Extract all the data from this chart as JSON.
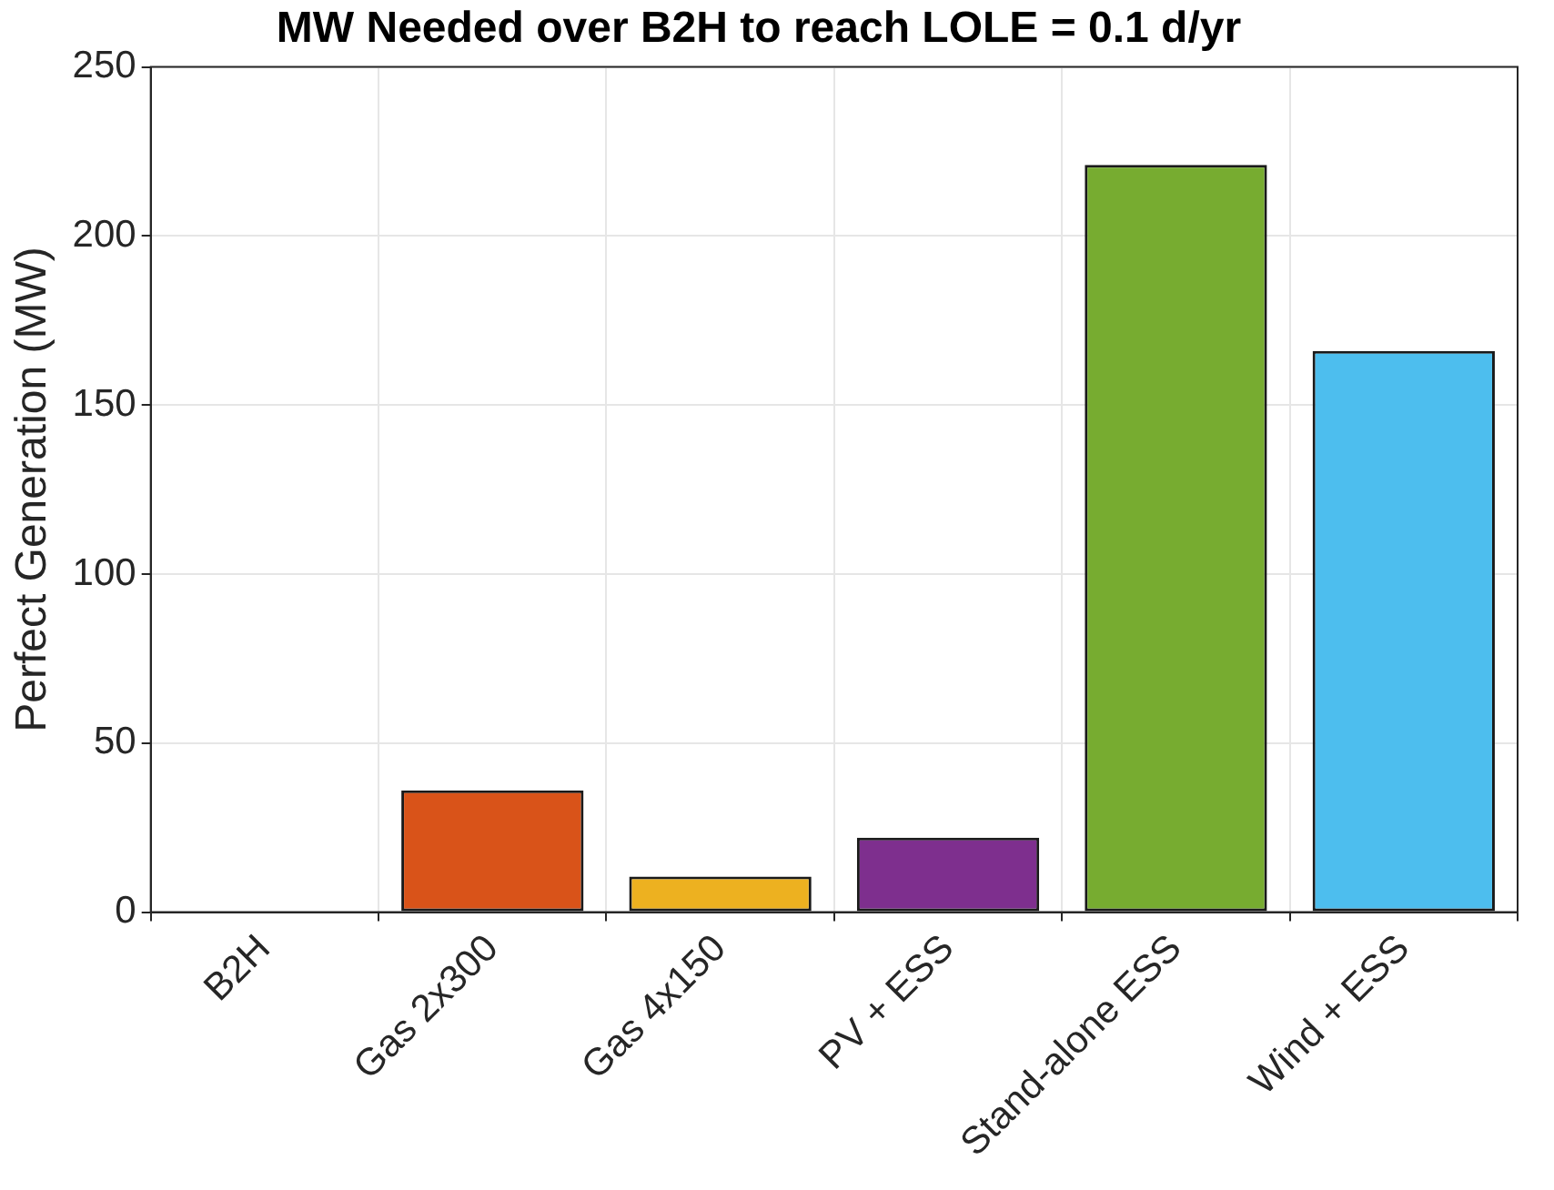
{
  "chart_data": {
    "type": "bar",
    "title": "MW Needed over B2H to reach LOLE = 0.1 d/yr",
    "ylabel": "Perfect Generation (MW)",
    "categories": [
      "B2H",
      "Gas 2x300",
      "Gas 4x150",
      "PV + ESS",
      "Stand-alone ESS",
      "Wind + ESS"
    ],
    "values": [
      0,
      36,
      10.5,
      22,
      221,
      166
    ],
    "colors": [
      "#0072bd",
      "#d95319",
      "#edb120",
      "#7e2f8e",
      "#77ac30",
      "#4dbeee"
    ],
    "ylim": [
      0,
      250
    ],
    "yticks": [
      0,
      50,
      100,
      150,
      200,
      250
    ],
    "grid": true
  }
}
